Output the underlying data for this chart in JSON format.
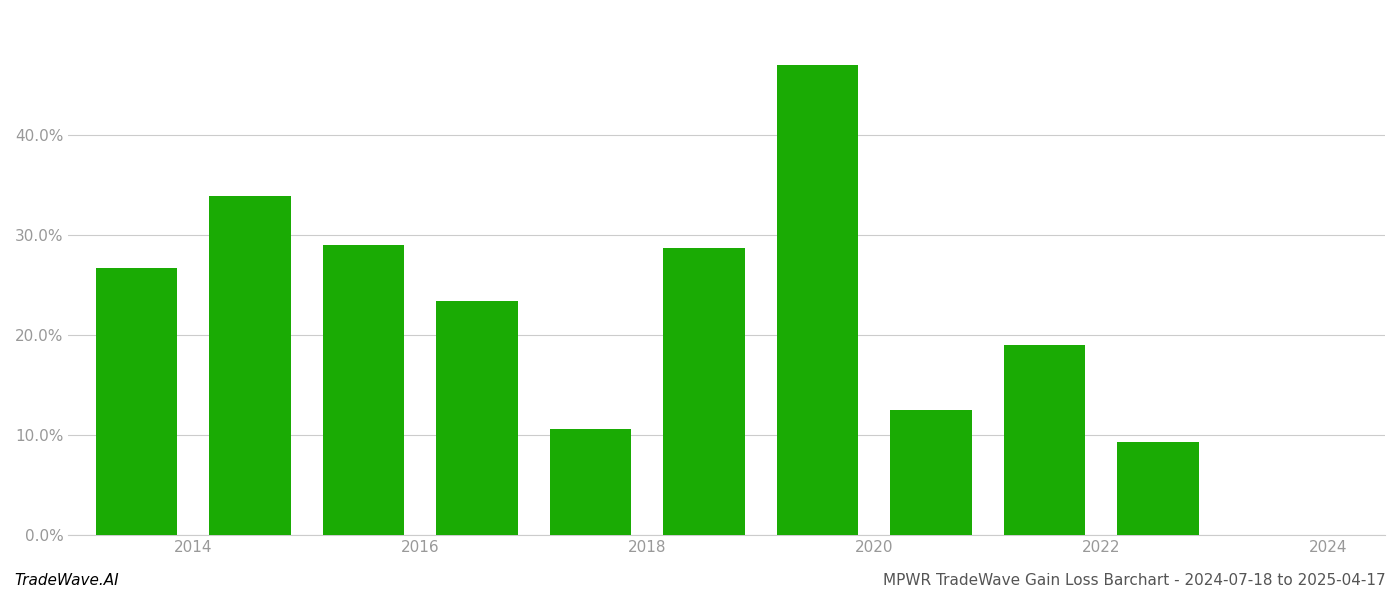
{
  "bar_positions": [
    2013.5,
    2014.5,
    2015.5,
    2016.5,
    2017.5,
    2018.5,
    2019.5,
    2020.5,
    2021.5,
    2022.5
  ],
  "values": [
    0.267,
    0.339,
    0.29,
    0.234,
    0.106,
    0.287,
    0.47,
    0.125,
    0.19,
    0.093
  ],
  "bar_color": "#1aab04",
  "bar_width": 0.72,
  "xlim": [
    2012.9,
    2024.5
  ],
  "ylim": [
    0,
    0.52
  ],
  "ytick_values": [
    0.0,
    0.1,
    0.2,
    0.3,
    0.4
  ],
  "xtick_positions": [
    2014,
    2016,
    2018,
    2020,
    2022,
    2024
  ],
  "xtick_labels": [
    "2014",
    "2016",
    "2018",
    "2020",
    "2022",
    "2024"
  ],
  "background_color": "#ffffff",
  "grid_color": "#cccccc",
  "tick_label_color": "#999999",
  "footer_left": "TradeWave.AI",
  "footer_right": "MPWR TradeWave Gain Loss Barchart - 2024-07-18 to 2025-04-17",
  "footer_fontsize": 11,
  "axis_fontsize": 11,
  "spine_color": "#cccccc"
}
